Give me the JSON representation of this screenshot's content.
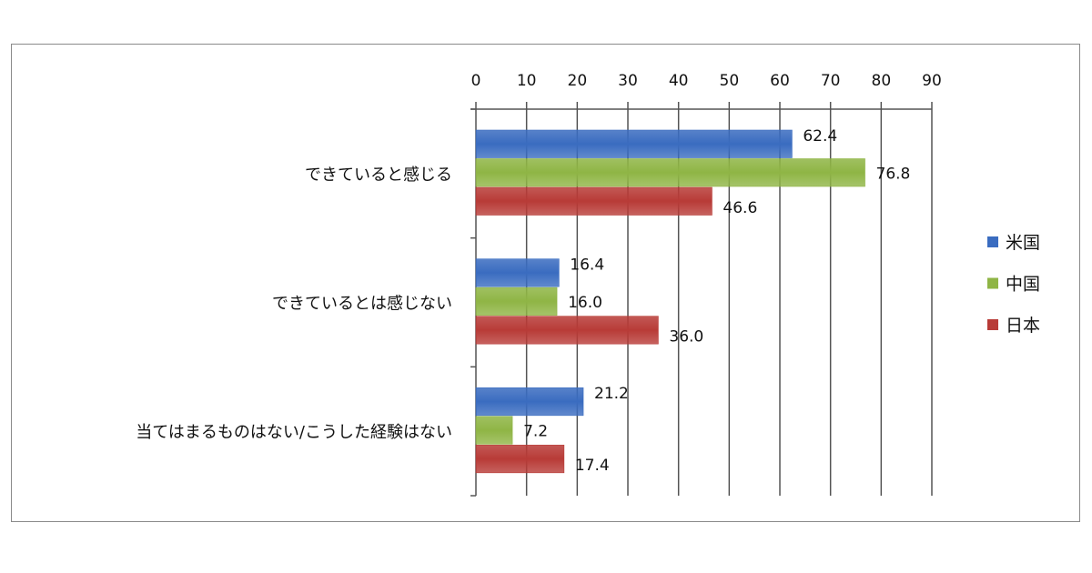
{
  "chart_data": {
    "type": "bar",
    "orientation": "horizontal",
    "title": "",
    "xlabel": "",
    "ylabel": "",
    "xlim": [
      0,
      90
    ],
    "ticks": [
      0,
      10,
      20,
      30,
      40,
      50,
      60,
      70,
      80,
      90
    ],
    "grid": true,
    "legend_position": "right",
    "categories": [
      "できていると感じる",
      "できているとは感じない",
      "当てはまるものはない/こうした経験はない"
    ],
    "series": [
      {
        "name": "米国",
        "color": "#3a6cc0",
        "values": [
          62.4,
          16.4,
          21.2
        ],
        "labels": [
          "62.4",
          "16.4",
          "21.2"
        ]
      },
      {
        "name": "中国",
        "color": "#8fb545",
        "values": [
          76.8,
          16.0,
          7.2
        ],
        "labels": [
          "76.8",
          "16.0",
          "7.2"
        ]
      },
      {
        "name": "日本",
        "color": "#b83b37",
        "values": [
          46.6,
          36.0,
          17.4
        ],
        "labels": [
          "46.6",
          "36.0",
          "17.4"
        ]
      }
    ]
  }
}
